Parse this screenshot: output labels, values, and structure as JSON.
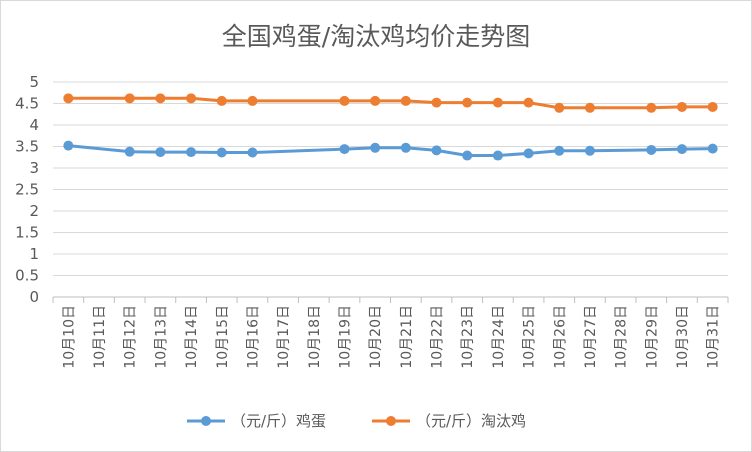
{
  "chart_data": {
    "type": "line",
    "title": "全国鸡蛋/淘汰鸡均价走势图",
    "xlabel": "",
    "ylabel": "",
    "ylim": [
      0,
      5
    ],
    "yticks": [
      "0",
      "0.5",
      "1",
      "1.5",
      "2",
      "2.5",
      "3",
      "3.5",
      "4",
      "4.5",
      "5"
    ],
    "grid": true,
    "legend_position": "bottom",
    "categories": [
      "10月10日",
      "10月11日",
      "10月12日",
      "10月13日",
      "10月14日",
      "10月15日",
      "10月16日",
      "10月17日",
      "10月18日",
      "10月19日",
      "10月20日",
      "10月21日",
      "10月22日",
      "10月23日",
      "10月24日",
      "10月25日",
      "10月26日",
      "10月27日",
      "10月28日",
      "10月29日",
      "10月30日",
      "10月31日"
    ],
    "series": [
      {
        "name": "（元/斤）鸡蛋",
        "color": "#5b9bd5",
        "values": [
          3.52,
          null,
          3.38,
          3.37,
          3.37,
          3.36,
          3.36,
          null,
          null,
          3.44,
          3.47,
          3.47,
          3.41,
          3.29,
          3.29,
          3.34,
          3.4,
          3.4,
          null,
          3.42,
          3.44,
          3.45
        ]
      },
      {
        "name": "（元/斤）淘汰鸡",
        "color": "#ed7d31",
        "values": [
          4.62,
          null,
          4.62,
          4.62,
          4.62,
          4.56,
          4.56,
          null,
          null,
          4.56,
          4.56,
          4.56,
          4.52,
          4.52,
          4.52,
          4.52,
          4.4,
          4.4,
          null,
          4.4,
          4.42,
          4.42
        ]
      }
    ]
  }
}
